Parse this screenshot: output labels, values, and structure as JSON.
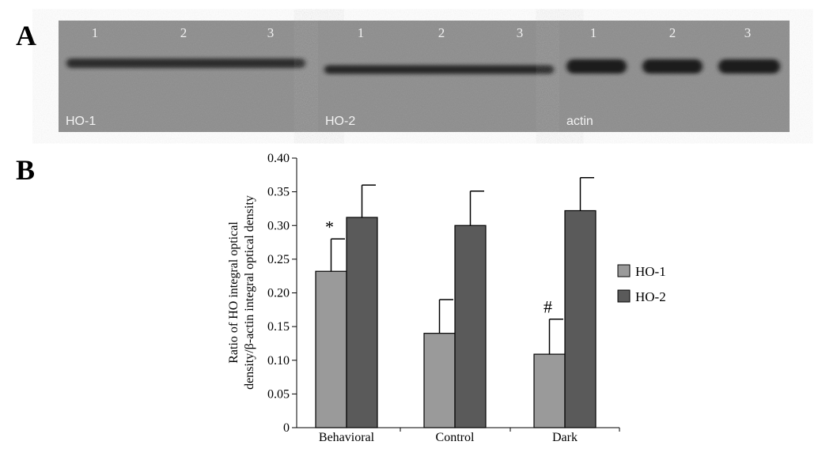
{
  "panels": {
    "a_label": "A",
    "b_label": "B"
  },
  "blot": {
    "strips": [
      {
        "name": "HO-1",
        "lanes": [
          "1",
          "2",
          "3"
        ]
      },
      {
        "name": "HO-2",
        "lanes": [
          "1",
          "2",
          "3"
        ]
      },
      {
        "name": "actin",
        "lanes": [
          "1",
          "2",
          "3"
        ]
      }
    ],
    "background_color": "#8c8c8c",
    "band_color": "#1c1c1c"
  },
  "chart_data": {
    "type": "bar",
    "categories": [
      "Behavioral",
      "Control",
      "Dark"
    ],
    "series": [
      {
        "name": "HO-1",
        "values": [
          0.232,
          0.14,
          0.109
        ],
        "errors": [
          0.048,
          0.05,
          0.052
        ],
        "color": "#9a9a9a"
      },
      {
        "name": "HO-2",
        "values": [
          0.312,
          0.3,
          0.322
        ],
        "errors": [
          0.048,
          0.051,
          0.049
        ],
        "color": "#5a5a5a"
      }
    ],
    "ylabel_lines": [
      "Ratio of HO integral optical",
      "density/β-actin integral optical density"
    ],
    "ylim": [
      0,
      0.4
    ],
    "yticks": [
      "0",
      "0.05",
      "0.10",
      "0.15",
      "0.20",
      "0.25",
      "0.30",
      "0.35",
      "0.40"
    ],
    "ytick_values": [
      0,
      0.05,
      0.1,
      0.15,
      0.2,
      0.25,
      0.3,
      0.35,
      0.4
    ],
    "annotations": [
      {
        "category_index": 0,
        "series_index": 0,
        "text": "*"
      },
      {
        "category_index": 2,
        "series_index": 0,
        "text": "#"
      }
    ],
    "legend": "right",
    "grid": false
  }
}
